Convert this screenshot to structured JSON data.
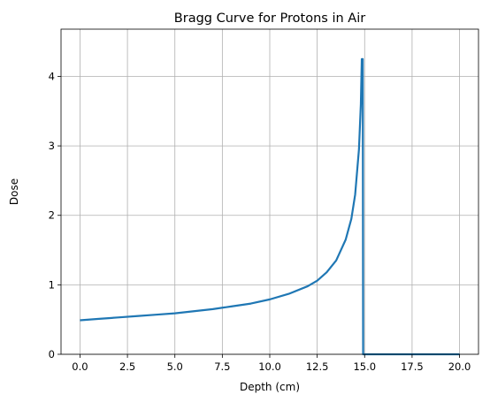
{
  "chart_data": {
    "type": "line",
    "title": "Bragg Curve for Protons in Air",
    "xlabel": "Depth (cm)",
    "ylabel": "Dose",
    "xlim": [
      -1.0,
      21.0
    ],
    "ylim": [
      0,
      4.68
    ],
    "xticks": [
      0.0,
      2.5,
      5.0,
      7.5,
      10.0,
      12.5,
      15.0,
      17.5,
      20.0
    ],
    "xtick_labels": [
      "0.0",
      "2.5",
      "5.0",
      "7.5",
      "10.0",
      "12.5",
      "15.0",
      "17.5",
      "20.0"
    ],
    "yticks": [
      0,
      1,
      2,
      3,
      4
    ],
    "ytick_labels": [
      "0",
      "1",
      "2",
      "3",
      "4"
    ],
    "grid": true,
    "series": [
      {
        "color": "#1f77b4",
        "x": [
          0.0,
          1.0,
          2.0,
          3.0,
          4.0,
          5.0,
          6.0,
          7.0,
          8.0,
          9.0,
          10.0,
          11.0,
          12.0,
          12.5,
          13.0,
          13.5,
          14.0,
          14.3,
          14.5,
          14.7,
          14.8,
          14.85,
          14.9,
          14.92,
          20.0
        ],
        "y": [
          0.49,
          0.51,
          0.53,
          0.55,
          0.57,
          0.59,
          0.62,
          0.65,
          0.69,
          0.73,
          0.79,
          0.87,
          0.98,
          1.06,
          1.18,
          1.35,
          1.65,
          1.95,
          2.3,
          2.95,
          3.6,
          4.25,
          4.25,
          0.0,
          0.0
        ]
      }
    ]
  }
}
